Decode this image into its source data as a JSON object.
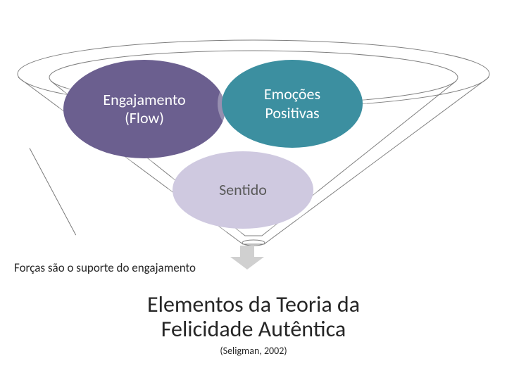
{
  "funnel": {
    "cone": {
      "outer_stroke": "#7f7f7f",
      "inner_stroke": "#7f7f7f",
      "stroke_width": 1
    },
    "bubbles": {
      "left": {
        "label": "Engajamento\n(Flow)",
        "fill": "#6b5f8f",
        "text_color": "#ffffff",
        "fontsize": 22
      },
      "right": {
        "label": "Emoções\nPositivas",
        "fill": "#3c8fa0",
        "text_color": "#ffffff",
        "fontsize": 22
      },
      "bottom": {
        "label": "Sentido",
        "fill": "#cfc9e0",
        "text_color": "#595959",
        "fontsize": 22
      }
    }
  },
  "caption": {
    "text": "Forças são o suporte do engajamento",
    "fontsize": 17,
    "color": "#262626"
  },
  "arrow": {
    "fill": "#d0d0d0",
    "width": 48,
    "height": 34
  },
  "title": {
    "line1": "Elementos da Teoria da",
    "line2": "Felicidade Autêntica",
    "fontsize": 32,
    "color": "#262626"
  },
  "subtitle": {
    "text": "(Seligman, 2002)",
    "fontsize": 14,
    "color": "#262626"
  }
}
